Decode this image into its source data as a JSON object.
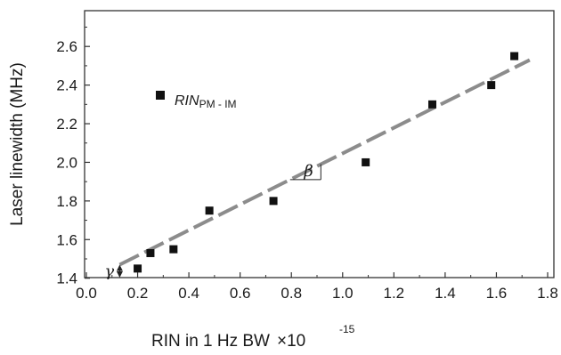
{
  "chart_data": {
    "type": "scatter",
    "title": "",
    "xlabel": "RIN in 1 Hz BW",
    "xlabel_multiplier": "×10",
    "xlabel_exponent": "-15",
    "ylabel": "Laser linewidth (MHz)",
    "xlim": [
      0.0,
      1.8
    ],
    "ylim": [
      1.3,
      2.7
    ],
    "x_ticks": [
      "0.0",
      "0.2",
      "0.4",
      "0.6",
      "0.8",
      "1.0",
      "1.2",
      "1.4",
      "1.6",
      "1.8"
    ],
    "y_ticks": [
      "1.4",
      "1.6",
      "1.8",
      "2.0",
      "2.2",
      "2.4",
      "2.6"
    ],
    "grid": false,
    "legend_placement": "upper-left",
    "series": [
      {
        "name_main": "RIN",
        "name_sub": "PM - IM",
        "marker": "square",
        "color": "#111111",
        "x": [
          0.2,
          0.25,
          0.34,
          0.48,
          0.73,
          1.09,
          1.35,
          1.58,
          1.67
        ],
        "y": [
          1.45,
          1.53,
          1.55,
          1.75,
          1.8,
          2.0,
          2.3,
          2.4,
          2.55
        ]
      }
    ],
    "fit_line": {
      "style": "dashed",
      "color": "#8c8c8c",
      "x": [
        0.13,
        1.73
      ],
      "y": [
        1.47,
        2.53
      ]
    },
    "annotations": {
      "slope_symbol": "β",
      "intercept_symbol": "γ"
    }
  }
}
